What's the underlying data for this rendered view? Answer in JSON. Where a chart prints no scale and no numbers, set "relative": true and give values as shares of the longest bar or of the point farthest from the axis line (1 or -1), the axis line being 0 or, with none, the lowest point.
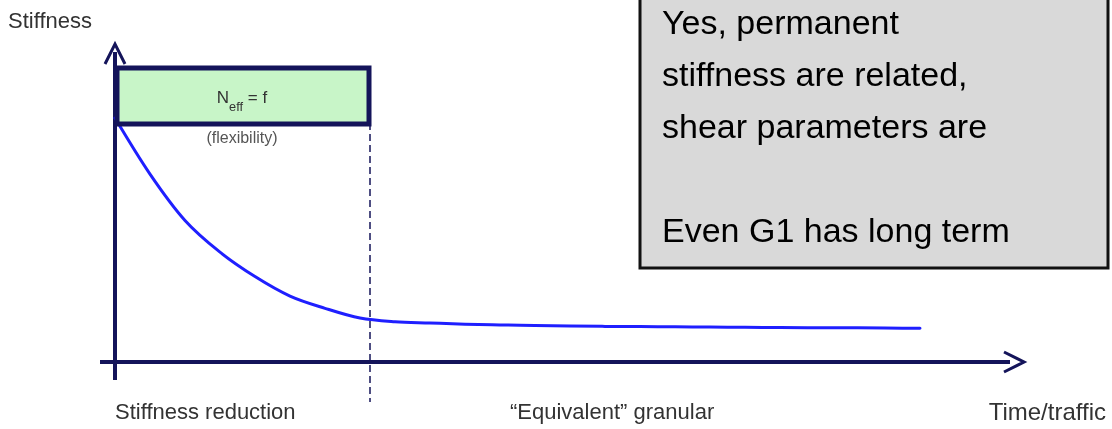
{
  "chart_data": {
    "type": "line",
    "relative": true,
    "ylabel": "Stiffness",
    "xlabel": "Time/traffic",
    "categories": [
      null,
      null,
      null,
      null,
      null,
      null,
      null,
      null,
      null,
      null,
      null,
      null,
      null,
      null,
      null,
      null,
      null,
      null,
      null,
      null,
      null,
      null,
      null,
      null
    ],
    "series": [
      {
        "color": "#1f1fff",
        "values": [
          1.0,
          0.77,
          0.58,
          0.45,
          0.35,
          0.27,
          0.22,
          0.18,
          0.165,
          0.16,
          0.155,
          0.152,
          0.15,
          0.148,
          0.146,
          0.145,
          0.144,
          0.143,
          0.142,
          0.141,
          0.14,
          0.14,
          0.139,
          0.138
        ]
      }
    ],
    "line_style": "solid",
    "marker": "none",
    "annotations": [
      "N$_{eff}$ = f",
      "(flexibility)",
      "Stiffness reduction",
      "“Equivalent” granular",
      "Yes, permanent",
      "stiffness are related,",
      "shear  parameters are",
      "Even G1 has long term"
    ]
  }
}
